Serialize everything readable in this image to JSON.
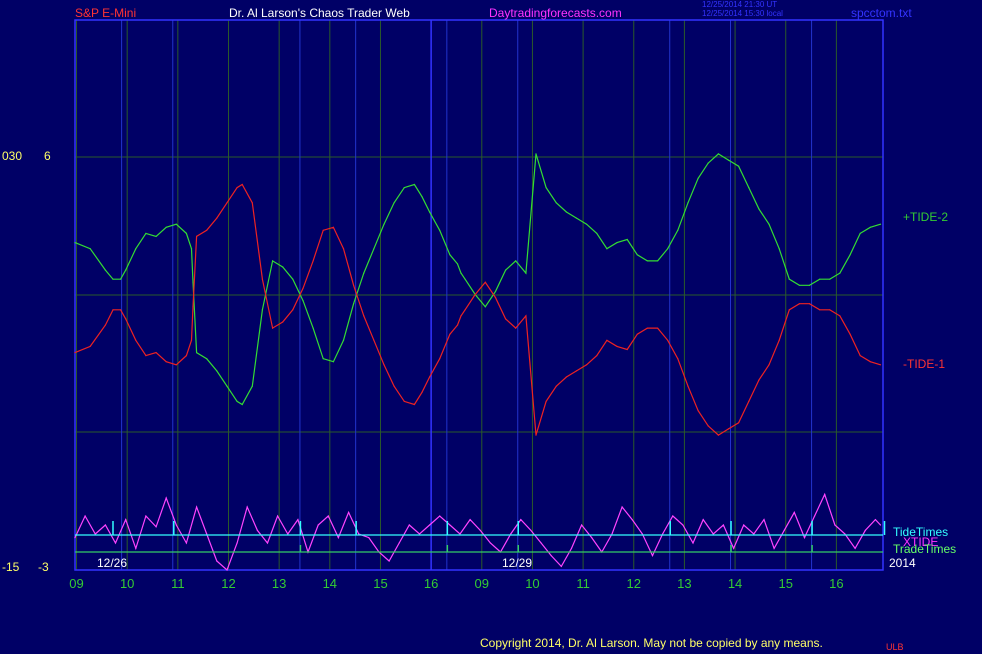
{
  "header": {
    "symbol": "S&P E-Mini",
    "title": "Dr. Al Larson's Chaos Trader Web",
    "site": "Daytradingforecasts.com",
    "time_ut": "12/25/2014 21:30 UT",
    "time_local": "12/25/2014 15:30 local",
    "file": "spcctom.txt"
  },
  "footer": {
    "copyright": "Copyright 2014, Dr. Al Larson. May not be copied by any means.",
    "tag": "ULB"
  },
  "axis_labels": {
    "top_left": "030",
    "top_value": "6",
    "bottom_left": "-15",
    "bottom_value": "-3",
    "year": "2014"
  },
  "colors": {
    "background": "#000066",
    "frame": "#3333ff",
    "grid": "#2a5a2a",
    "tide_plus": "#33dd33",
    "tide_minus": "#ee2222",
    "xtide": "#ff44ff",
    "tide_times": "#33ffff",
    "trade_times": "#33cc66"
  },
  "chart_data": {
    "type": "line",
    "date_labels": [
      "12/26",
      "12/29"
    ],
    "hour_ticks": [
      "09",
      "10",
      "11",
      "12",
      "13",
      "14",
      "15",
      "16",
      "09",
      "10",
      "11",
      "12",
      "13",
      "14",
      "15",
      "16"
    ],
    "series": [
      {
        "name": "+TIDE-2",
        "x": [
          0,
          0.3,
          0.6,
          0.75,
          0.9,
          1,
          1.2,
          1.4,
          1.6,
          1.8,
          2,
          2.2,
          2.3,
          2.33,
          2.4,
          2.6,
          2.8,
          3,
          3.2,
          3.3,
          3.5,
          3.7,
          3.9,
          4.1,
          4.3,
          4.5,
          4.7,
          4.9,
          5.1,
          5.3,
          5.5,
          5.7,
          5.9,
          6.1,
          6.3,
          6.5,
          6.7,
          6.85,
          7,
          7.2,
          7.4,
          7.55,
          7.62,
          7.7,
          7.9,
          8.1,
          8.3,
          8.5,
          8.7,
          8.9,
          9.1,
          9.3,
          9.5,
          9.7,
          9.9,
          10.1,
          10.3,
          10.5,
          10.7,
          10.9,
          11.1,
          11.3,
          11.5,
          11.7,
          11.9,
          12.1,
          12.3,
          12.5,
          12.7,
          12.9,
          13.1,
          13.3,
          13.5,
          13.7,
          13.9,
          14.1,
          14.3,
          14.5,
          14.7,
          14.9,
          15.1,
          15.3,
          15.5,
          15.7,
          15.9
        ],
        "values": [
          3.2,
          3.0,
          2.3,
          2.0,
          2.0,
          2.3,
          3.0,
          3.5,
          3.4,
          3.7,
          3.8,
          3.5,
          3.0,
          1.9,
          -0.4,
          -0.6,
          -1.0,
          -1.5,
          -2.0,
          -2.1,
          -1.5,
          1.0,
          2.6,
          2.4,
          2.0,
          1.3,
          0.4,
          -0.6,
          -0.7,
          0.0,
          1.2,
          2.2,
          3.0,
          3.8,
          4.5,
          5.0,
          5.1,
          4.7,
          4.2,
          3.6,
          2.8,
          2.5,
          2.2,
          2.0,
          1.5,
          1.1,
          1.6,
          2.3,
          2.6,
          2.2,
          6.1,
          5.0,
          4.5,
          4.2,
          4.0,
          3.8,
          3.5,
          3.0,
          3.2,
          3.3,
          2.8,
          2.6,
          2.6,
          3.0,
          3.6,
          4.5,
          5.3,
          5.8,
          6.1,
          5.9,
          5.7,
          5.0,
          4.3,
          3.8,
          3.0,
          2.0,
          1.8,
          1.8,
          2.0,
          2.0,
          2.2,
          2.8,
          3.5,
          3.7,
          3.8
        ]
      },
      {
        "name": "-TIDE-1",
        "x": [
          0,
          0.3,
          0.6,
          0.75,
          0.9,
          1,
          1.2,
          1.4,
          1.6,
          1.8,
          2,
          2.2,
          2.3,
          2.33,
          2.4,
          2.6,
          2.8,
          3,
          3.2,
          3.3,
          3.5,
          3.7,
          3.9,
          4.1,
          4.3,
          4.5,
          4.7,
          4.9,
          5.1,
          5.3,
          5.5,
          5.7,
          5.9,
          6.1,
          6.3,
          6.5,
          6.7,
          6.85,
          7,
          7.2,
          7.4,
          7.55,
          7.62,
          7.7,
          7.9,
          8.1,
          8.3,
          8.5,
          8.7,
          8.9,
          9.1,
          9.3,
          9.5,
          9.7,
          9.9,
          10.1,
          10.3,
          10.5,
          10.7,
          10.9,
          11.1,
          11.3,
          11.5,
          11.7,
          11.9,
          12.1,
          12.3,
          12.5,
          12.7,
          12.9,
          13.1,
          13.3,
          13.5,
          13.7,
          13.9,
          14.1,
          14.3,
          14.5,
          14.7,
          14.9,
          15.1,
          15.3,
          15.5,
          15.7,
          15.9
        ],
        "values": [
          -0.4,
          -0.2,
          0.5,
          1.0,
          1.0,
          0.7,
          0.0,
          -0.5,
          -0.4,
          -0.7,
          -0.8,
          -0.5,
          0.0,
          1.1,
          3.4,
          3.6,
          4.0,
          4.5,
          5.0,
          5.1,
          4.5,
          2.0,
          0.4,
          0.6,
          1.0,
          1.7,
          2.6,
          3.6,
          3.7,
          3.0,
          1.8,
          0.8,
          0.0,
          -0.8,
          -1.5,
          -2.0,
          -2.1,
          -1.7,
          -1.2,
          -0.6,
          0.2,
          0.5,
          0.8,
          1.0,
          1.5,
          1.9,
          1.4,
          0.7,
          0.4,
          0.8,
          -3.1,
          -2.0,
          -1.5,
          -1.2,
          -1.0,
          -0.8,
          -0.5,
          0.0,
          -0.2,
          -0.3,
          0.2,
          0.4,
          0.4,
          0.0,
          -0.6,
          -1.5,
          -2.3,
          -2.8,
          -3.1,
          -2.9,
          -2.7,
          -2.0,
          -1.3,
          -0.8,
          0.0,
          1.0,
          1.2,
          1.2,
          1.0,
          1.0,
          0.8,
          0.2,
          -0.5,
          -0.7,
          -0.8
        ]
      },
      {
        "name": "XTIDE",
        "x": [
          0,
          0.2,
          0.4,
          0.6,
          0.8,
          1,
          1.2,
          1.4,
          1.6,
          1.8,
          2,
          2.2,
          2.4,
          2.6,
          2.8,
          3,
          3.2,
          3.4,
          3.6,
          3.8,
          4,
          4.2,
          4.4,
          4.6,
          4.8,
          5,
          5.2,
          5.4,
          5.6,
          5.8,
          6,
          6.2,
          6.4,
          6.6,
          6.8,
          7,
          7.2,
          7.4,
          7.6,
          7.8,
          8,
          8.2,
          8.4,
          8.6,
          8.8,
          9,
          9.2,
          9.4,
          9.6,
          9.8,
          10,
          10.2,
          10.4,
          10.6,
          10.8,
          11,
          11.2,
          11.4,
          11.6,
          11.8,
          12,
          12.2,
          12.4,
          12.6,
          12.8,
          13,
          13.2,
          13.4,
          13.6,
          13.8,
          14,
          14.2,
          14.4,
          14.6,
          14.8,
          15,
          15.2,
          15.4,
          15.6,
          15.8,
          15.9
        ],
        "values": [
          -13.2,
          -12.0,
          -13.0,
          -12.5,
          -13.5,
          -12.2,
          -13.8,
          -12.0,
          -12.6,
          -11.0,
          -12.5,
          -13.5,
          -11.5,
          -13.0,
          -14.5,
          -15.0,
          -13.5,
          -11.5,
          -12.8,
          -13.5,
          -12.0,
          -13.0,
          -12.2,
          -14.0,
          -12.5,
          -12.0,
          -13.2,
          -11.8,
          -13.0,
          -13.2,
          -14.0,
          -14.5,
          -13.5,
          -12.5,
          -13.0,
          -12.5,
          -12.0,
          -12.5,
          -13.0,
          -12.2,
          -12.8,
          -13.5,
          -14.0,
          -13.0,
          -12.2,
          -12.8,
          -13.5,
          -14.2,
          -14.8,
          -13.8,
          -12.5,
          -13.2,
          -14.0,
          -13.0,
          -11.5,
          -12.2,
          -13.0,
          -14.2,
          -13.0,
          -12.0,
          -12.5,
          -13.5,
          -12.2,
          -13.0,
          -12.5,
          -13.8,
          -12.5,
          -13.0,
          -12.2,
          -13.8,
          -12.8,
          -11.8,
          -13.2,
          -12.0,
          -10.8,
          -12.5,
          -13.0,
          -13.8,
          -12.8,
          -12.2,
          -12.5
        ]
      }
    ],
    "tide_times": [
      0.75,
      1.95,
      4.45,
      5.55,
      7.35,
      8.75,
      11.75,
      12.95,
      14.55,
      15.98
    ],
    "trade_times": [
      4.45,
      7.35,
      8.75,
      12.95,
      14.55
    ],
    "legend": [
      "TideTimes",
      "XTIDE",
      "TradeTimes"
    ]
  }
}
